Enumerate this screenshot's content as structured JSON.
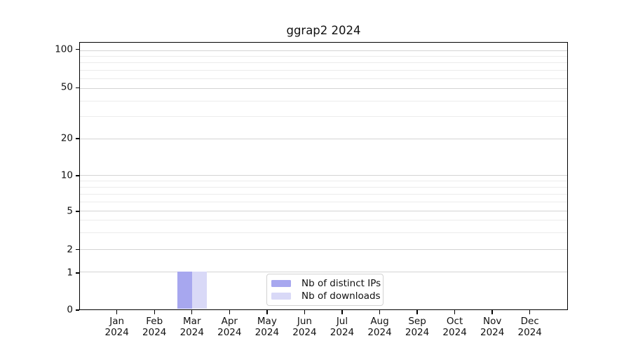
{
  "chart_data": {
    "type": "bar",
    "title": "ggrap2 2024",
    "xlabel": "",
    "ylabel": "",
    "x": {
      "months": [
        "Jan",
        "Feb",
        "Mar",
        "Apr",
        "May",
        "Jun",
        "Jul",
        "Aug",
        "Sep",
        "Oct",
        "Nov",
        "Dec"
      ],
      "year": "2024"
    },
    "yaxis": {
      "scale": "log-like (0 baseline)",
      "range": [
        0,
        100
      ],
      "major_ticks": [
        100,
        50,
        20,
        10,
        5,
        2,
        1,
        0
      ],
      "minor_ticks": [
        90,
        80,
        70,
        60,
        40,
        30,
        9,
        8,
        7,
        6,
        4,
        3
      ]
    },
    "series": [
      {
        "name": "Nb of distinct IPs",
        "color": "#a7a7ef",
        "values": [
          0,
          0,
          1,
          0,
          0,
          0,
          0,
          0,
          0,
          0,
          0,
          0
        ]
      },
      {
        "name": "Nb of downloads",
        "color": "#d9d9f7",
        "values": [
          0,
          0,
          1,
          0,
          0,
          0,
          0,
          0,
          0,
          0,
          0,
          0
        ]
      }
    ],
    "legend": {
      "position": "lower center"
    },
    "grid": {
      "horizontal": true,
      "vertical": false
    }
  }
}
